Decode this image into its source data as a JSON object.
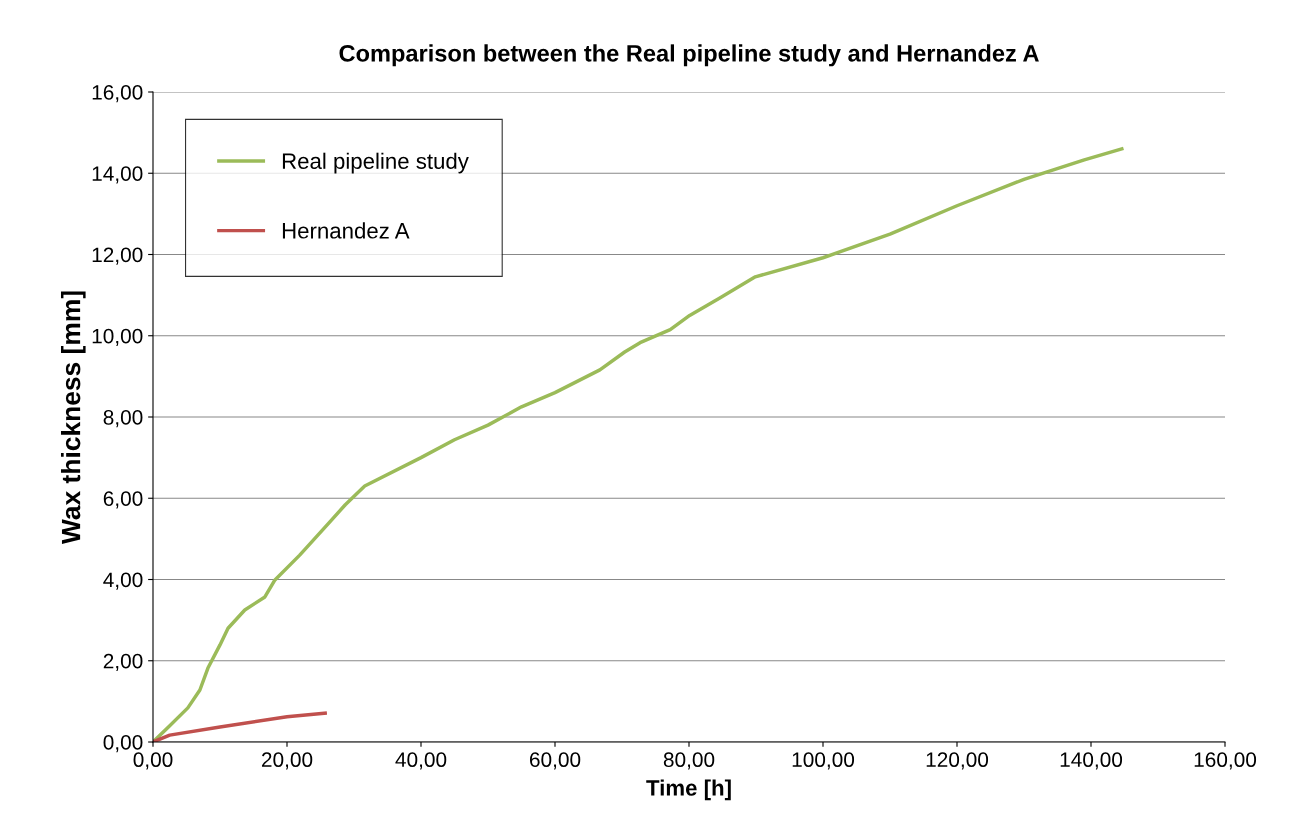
{
  "chart_data": {
    "type": "line",
    "title": "Comparison between the Real pipeline study and Hernandez A",
    "xlabel": "Time [h]",
    "ylabel": "Wax thickness [mm]",
    "series": [
      {
        "name": "Real pipeline study",
        "color": "#9bbb59",
        "x": [
          0,
          2.5,
          5.2,
          7,
          8.2,
          10,
          11.2,
          13.7,
          16.7,
          18.2,
          21.9,
          26.4,
          28.7,
          31.6,
          40,
          45,
          50,
          55,
          60,
          66.7,
          70.4,
          72.7,
          77.2,
          80.1,
          84.6,
          89.9,
          100,
          110,
          120,
          130,
          139,
          144.6
        ],
        "values": [
          0,
          0.4,
          0.84,
          1.28,
          1.82,
          2.39,
          2.8,
          3.25,
          3.57,
          3.99,
          4.6,
          5.42,
          5.84,
          6.3,
          7.0,
          7.44,
          7.8,
          8.25,
          8.6,
          9.16,
          9.6,
          9.83,
          10.15,
          10.5,
          10.93,
          11.45,
          11.92,
          12.5,
          13.2,
          13.85,
          14.33,
          14.6
        ]
      },
      {
        "name": "Hernandez A",
        "color": "#c0504d",
        "x": [
          0,
          2.5,
          10,
          20,
          25.7
        ],
        "values": [
          0,
          0.17,
          0.37,
          0.62,
          0.71
        ]
      }
    ],
    "xlim": [
      0,
      160
    ],
    "ylim": [
      0,
      16
    ],
    "xticks": [
      {
        "value": 0,
        "label": "0,00"
      },
      {
        "value": 20,
        "label": "20,00"
      },
      {
        "value": 40,
        "label": "40,00"
      },
      {
        "value": 60,
        "label": "60,00"
      },
      {
        "value": 80,
        "label": "80,00"
      },
      {
        "value": 100,
        "label": "100,00"
      },
      {
        "value": 120,
        "label": "120,00"
      },
      {
        "value": 140,
        "label": "140,00"
      },
      {
        "value": 160,
        "label": "160,00"
      }
    ],
    "yticks": [
      {
        "value": 0,
        "label": "0,00"
      },
      {
        "value": 2,
        "label": "2,00"
      },
      {
        "value": 4,
        "label": "4,00"
      },
      {
        "value": 6,
        "label": "6,00"
      },
      {
        "value": 8,
        "label": "8,00"
      },
      {
        "value": 10,
        "label": "10,00"
      },
      {
        "value": 12,
        "label": "12,00"
      },
      {
        "value": 14,
        "label": "14,00"
      },
      {
        "value": 16,
        "label": "16,00"
      }
    ],
    "grid": "y",
    "legend": "top left",
    "marker": "none",
    "line_style": "solid"
  }
}
